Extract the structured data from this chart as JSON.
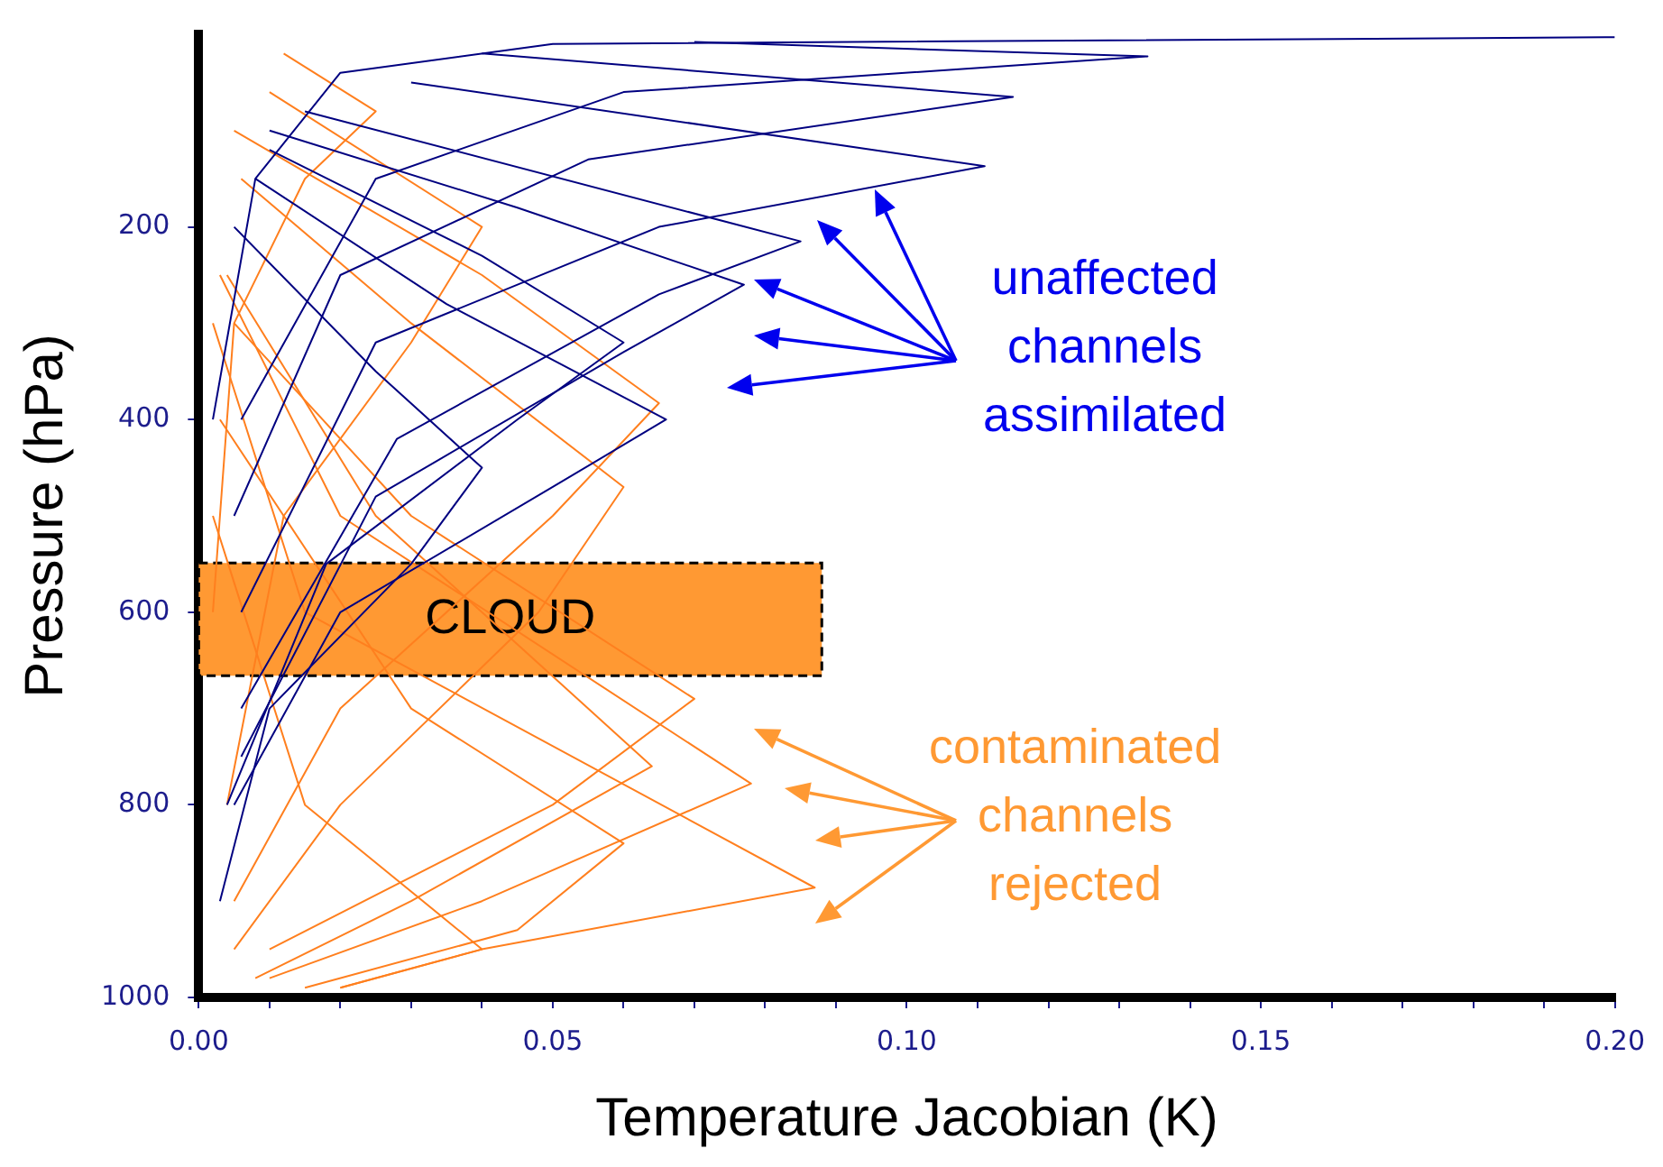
{
  "chart_data": {
    "type": "line",
    "xlabel": "Temperature Jacobian (K)",
    "ylabel": "Pressure (hPa)",
    "xlim": [
      0,
      0.2
    ],
    "ylim": [
      1000,
      0
    ],
    "xticks": [
      {
        "value": 0,
        "label": "0.00"
      },
      {
        "value": 0.01,
        "label": null
      },
      {
        "value": 0.02,
        "label": null
      },
      {
        "value": 0.03,
        "label": null
      },
      {
        "value": 0.04,
        "label": null
      },
      {
        "value": 0.05,
        "label": "0.05"
      },
      {
        "value": 0.06,
        "label": null
      },
      {
        "value": 0.07,
        "label": null
      },
      {
        "value": 0.08,
        "label": null
      },
      {
        "value": 0.09,
        "label": null
      },
      {
        "value": 0.1,
        "label": "0.10"
      },
      {
        "value": 0.11,
        "label": null
      },
      {
        "value": 0.12,
        "label": null
      },
      {
        "value": 0.13,
        "label": null
      },
      {
        "value": 0.14,
        "label": null
      },
      {
        "value": 0.15,
        "label": "0.15"
      },
      {
        "value": 0.16,
        "label": null
      },
      {
        "value": 0.17,
        "label": null
      },
      {
        "value": 0.18,
        "label": null
      },
      {
        "value": 0.19,
        "label": null
      },
      {
        "value": 0.2,
        "label": "0.20"
      }
    ],
    "yticks": [
      200,
      400,
      600,
      800,
      1000
    ],
    "grid": false,
    "legend": false,
    "marker": "none",
    "line_style": "solid",
    "bands": [
      {
        "axis": "y",
        "from": 549,
        "to": 666,
        "label": "CLOUD",
        "color": "#ff9933"
      }
    ],
    "annotations": [
      "unaffected\nchannels\nassimilated",
      "contaminated\nchannels\nrejected"
    ],
    "series": [
      {
        "color": "#000080",
        "x": [
          0.2,
          0.05,
          0.02,
          0.008,
          0.002
        ],
        "values": [
          3,
          10,
          40,
          150,
          400
        ]
      },
      {
        "color": "#000080",
        "x": [
          0.07,
          0.134,
          0.06,
          0.025,
          0.006
        ],
        "values": [
          8,
          23,
          60,
          150,
          400
        ]
      },
      {
        "color": "#000080",
        "x": [
          0.04,
          0.115,
          0.055,
          0.02,
          0.005
        ],
        "values": [
          20,
          65,
          130,
          250,
          500
        ]
      },
      {
        "color": "#000080",
        "x": [
          0.03,
          0.111,
          0.065,
          0.025,
          0.006
        ],
        "values": [
          50,
          137,
          200,
          320,
          600
        ]
      },
      {
        "color": "#000080",
        "x": [
          0.015,
          0.085,
          0.065,
          0.028,
          0.006
        ],
        "values": [
          80,
          215,
          270,
          420,
          700
        ]
      },
      {
        "color": "#000080",
        "x": [
          0.01,
          0.045,
          0.077,
          0.06,
          0.025,
          0.006
        ],
        "values": [
          100,
          180,
          260,
          330,
          480,
          750
        ]
      },
      {
        "color": "#000080",
        "x": [
          0.01,
          0.04,
          0.06,
          0.045,
          0.018,
          0.004
        ],
        "values": [
          120,
          230,
          320,
          400,
          550,
          800
        ]
      },
      {
        "color": "#000080",
        "x": [
          0.008,
          0.035,
          0.066,
          0.05,
          0.02,
          0.005
        ],
        "values": [
          150,
          280,
          400,
          470,
          600,
          800
        ]
      },
      {
        "color": "#000080",
        "x": [
          0.005,
          0.025,
          0.04,
          0.03,
          0.01,
          0.003
        ],
        "values": [
          200,
          350,
          450,
          550,
          700,
          900
        ]
      },
      {
        "color": "#ff7f1e",
        "x": [
          0.012,
          0.025,
          0.015,
          0.005,
          0.002
        ],
        "values": [
          20,
          80,
          150,
          300,
          600
        ]
      },
      {
        "color": "#ff7f1e",
        "x": [
          0.01,
          0.04,
          0.03,
          0.012,
          0.004
        ],
        "values": [
          60,
          200,
          320,
          500,
          800
        ]
      },
      {
        "color": "#ff7f1e",
        "x": [
          0.005,
          0.04,
          0.065,
          0.05,
          0.02,
          0.005
        ],
        "values": [
          100,
          250,
          383,
          500,
          700,
          900
        ]
      },
      {
        "color": "#ff7f1e",
        "x": [
          0.006,
          0.03,
          0.06,
          0.048,
          0.02,
          0.005
        ],
        "values": [
          150,
          300,
          470,
          600,
          800,
          950
        ]
      },
      {
        "color": "#ff7f1e",
        "x": [
          0.005,
          0.03,
          0.07,
          0.05,
          0.01
        ],
        "values": [
          300,
          500,
          690,
          800,
          950
        ]
      },
      {
        "color": "#ff7f1e",
        "x": [
          0.004,
          0.025,
          0.064,
          0.03,
          0.008
        ],
        "values": [
          250,
          500,
          760,
          900,
          980
        ]
      },
      {
        "color": "#ff7f1e",
        "x": [
          0.003,
          0.02,
          0.078,
          0.04,
          0.01
        ],
        "values": [
          250,
          500,
          778,
          900,
          980
        ]
      },
      {
        "color": "#ff7f1e",
        "x": [
          0.003,
          0.03,
          0.06,
          0.045,
          0.015
        ],
        "values": [
          400,
          700,
          840,
          930,
          990
        ]
      },
      {
        "color": "#ff7f1e",
        "x": [
          0.002,
          0.015,
          0.087,
          0.04,
          0.02
        ],
        "values": [
          300,
          600,
          886,
          950,
          990
        ]
      },
      {
        "color": "#ff7f1e",
        "x": [
          0.002,
          0.015,
          0.04,
          0.02
        ],
        "values": [
          500,
          800,
          950,
          990
        ]
      }
    ]
  }
}
